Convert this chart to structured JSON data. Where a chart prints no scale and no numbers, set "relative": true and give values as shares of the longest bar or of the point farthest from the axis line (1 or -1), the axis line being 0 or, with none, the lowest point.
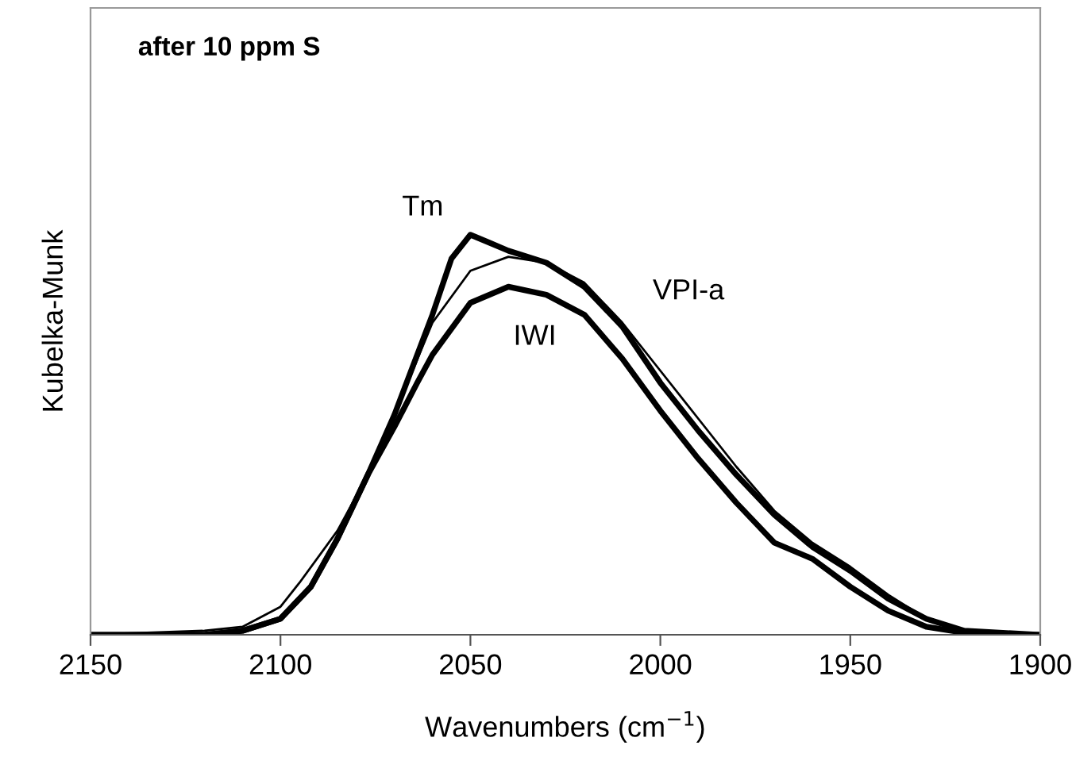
{
  "chart_data": {
    "type": "line",
    "title": "after 10 ppm S",
    "xlabel": "Wavenumbers (cm$^{−1}$)",
    "ylabel": "Kubelka-Munk",
    "relative": true,
    "xlim": [
      2150,
      1900
    ],
    "xticks": [
      2150,
      2100,
      2050,
      2000,
      1950,
      1900
    ],
    "grid": false,
    "marker": "none",
    "line_style": "solid",
    "series": [
      {
        "color": "#000000",
        "x": [
          2150,
          2120,
          2110,
          2100,
          2092,
          2085,
          2077,
          2070,
          2066,
          2060,
          2055,
          2050,
          2045,
          2040,
          2030,
          2020,
          2010,
          2000,
          1990,
          1980,
          1970,
          1960,
          1950,
          1940,
          1930,
          1920,
          1900
        ],
        "values": [
          0,
          0,
          0.01,
          0.04,
          0.12,
          0.24,
          0.4,
          0.55,
          0.65,
          0.8,
          0.94,
          1.0,
          0.98,
          0.96,
          0.93,
          0.87,
          0.77,
          0.63,
          0.51,
          0.4,
          0.3,
          0.22,
          0.16,
          0.09,
          0.04,
          0.01,
          0
        ]
      },
      {
        "color": "#000000",
        "x": [
          2150,
          2120,
          2110,
          2100,
          2095,
          2085,
          2077,
          2070,
          2060,
          2050,
          2040,
          2030,
          2020,
          2010,
          2000,
          1990,
          1980,
          1970,
          1960,
          1950,
          1940,
          1930,
          1920,
          1910,
          1900
        ],
        "values": [
          0,
          0.01,
          0.02,
          0.07,
          0.13,
          0.26,
          0.4,
          0.55,
          0.78,
          0.91,
          0.945,
          0.93,
          0.88,
          0.78,
          0.66,
          0.54,
          0.42,
          0.31,
          0.23,
          0.17,
          0.1,
          0.04,
          0.01,
          0,
          0
        ]
      },
      {
        "color": "#000000",
        "x": [
          2150,
          2120,
          2110,
          2100,
          2092,
          2085,
          2077,
          2070,
          2064,
          2060,
          2050,
          2040,
          2030,
          2020,
          2010,
          2000,
          1990,
          1980,
          1970,
          1960,
          1950,
          1940,
          1930,
          1920,
          1910,
          1900
        ],
        "values": [
          0,
          0,
          0.01,
          0.04,
          0.12,
          0.24,
          0.4,
          0.52,
          0.63,
          0.7,
          0.83,
          0.87,
          0.85,
          0.8,
          0.69,
          0.56,
          0.44,
          0.33,
          0.23,
          0.19,
          0.12,
          0.06,
          0.02,
          0.005,
          0,
          0
        ]
      }
    ],
    "annotations": [
      {
        "text": "Tm",
        "x": 2055,
        "y": 0.94
      },
      {
        "text": "VPI-a",
        "x": 2010,
        "y": 0.78
      },
      {
        "text": "IWI",
        "x": 2040,
        "y": 0.87
      }
    ]
  }
}
